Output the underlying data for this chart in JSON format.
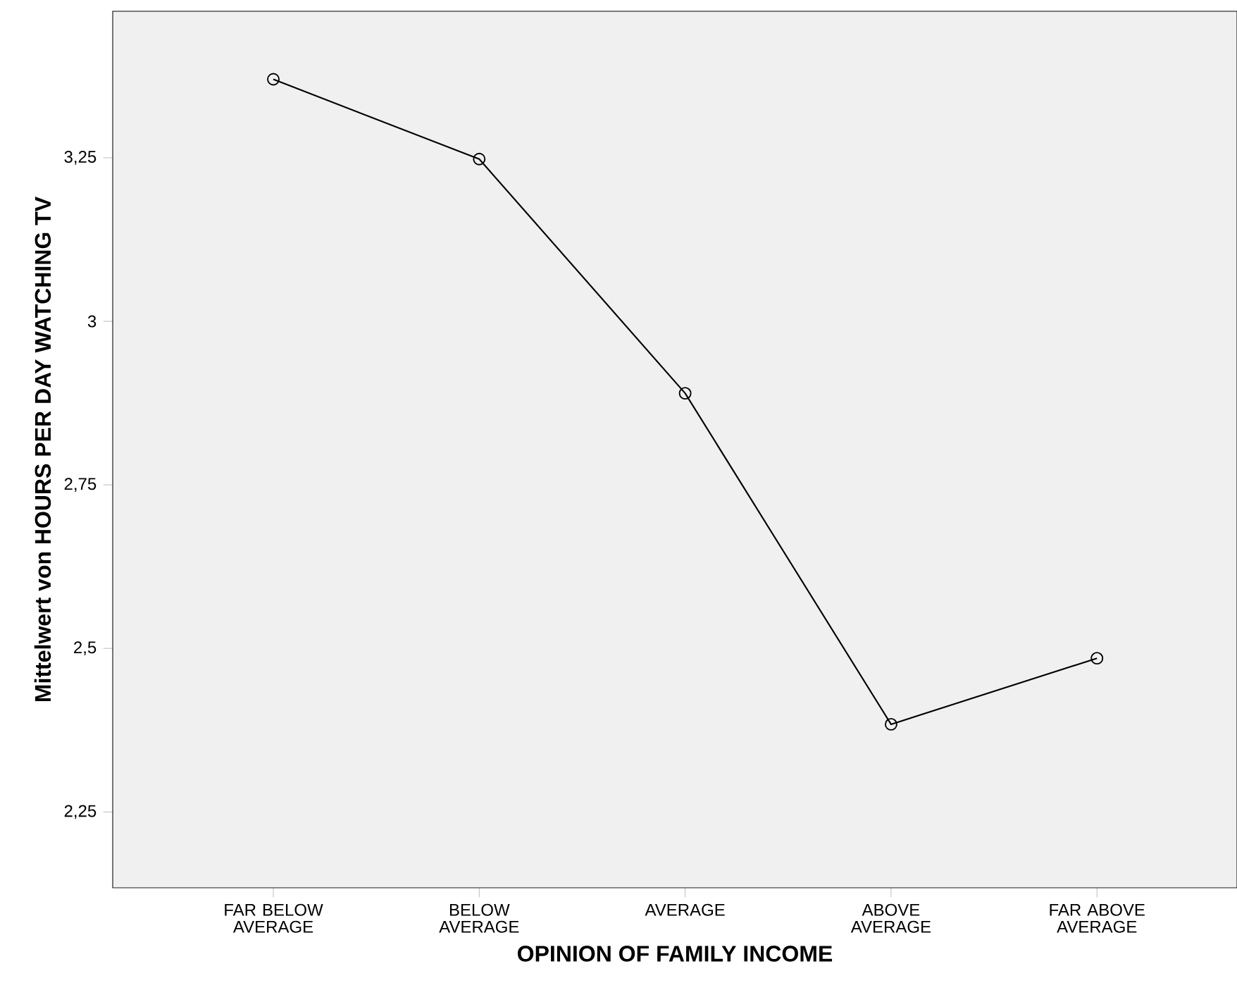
{
  "chart_data": {
    "type": "line",
    "xlabel": "OPINION OF FAMILY INCOME",
    "ylabel": "Mittelwert von HOURS PER DAY WATCHING TV",
    "categories": [
      "FAR BELOW AVERAGE",
      "BELOW AVERAGE",
      "AVERAGE",
      "ABOVE AVERAGE",
      "FAR ABOVE AVERAGE"
    ],
    "series": [
      {
        "color": "#000000",
        "values": [
          3.37,
          3.248,
          2.89,
          2.384,
          2.485
        ]
      }
    ],
    "ylim": [
      2.134,
      3.474
    ],
    "yticks": [
      {
        "value": 2.25,
        "label": "2,25"
      },
      {
        "value": 2.5,
        "label": "2,5"
      },
      {
        "value": 2.75,
        "label": "2,75"
      },
      3,
      {
        "value": 3.25,
        "label": "3,25"
      }
    ],
    "marker": "circle",
    "line_style": "solid"
  }
}
